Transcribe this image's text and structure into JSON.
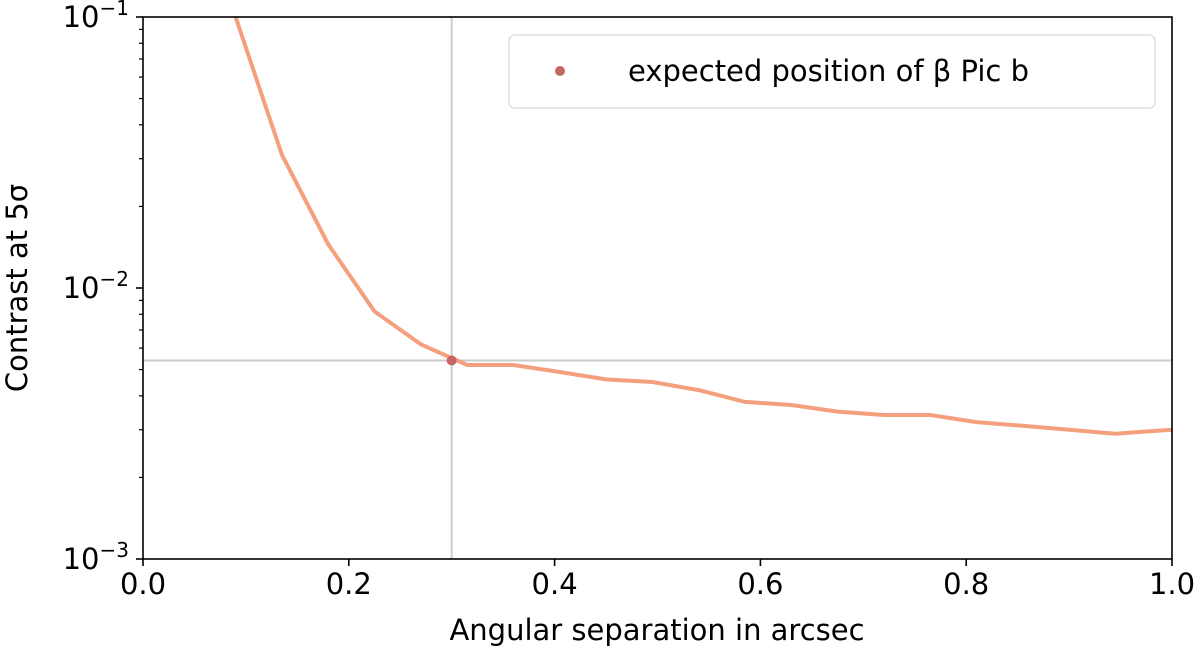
{
  "chart_data": {
    "type": "line",
    "xlabel": "Angular separation in arcsec",
    "ylabel": "Contrast at 5σ",
    "xlim": [
      0.0,
      1.0
    ],
    "ylim": [
      0.001,
      0.1
    ],
    "y_scale": "log",
    "x_ticks": [
      0.0,
      0.2,
      0.4,
      0.6,
      0.8,
      1.0
    ],
    "x_tick_labels": [
      "0.0",
      "0.2",
      "0.4",
      "0.6",
      "0.8",
      "1.0"
    ],
    "y_ticks": [
      0.001,
      0.01,
      0.1
    ],
    "y_tick_labels": [
      {
        "base": "10",
        "exp": "−3"
      },
      {
        "base": "10",
        "exp": "−2"
      },
      {
        "base": "10",
        "exp": "−1"
      }
    ],
    "grid": false,
    "series": [
      {
        "color": "#f4a07e",
        "x": [
          0.09,
          0.135,
          0.18,
          0.225,
          0.27,
          0.315,
          0.36,
          0.405,
          0.45,
          0.495,
          0.54,
          0.585,
          0.63,
          0.675,
          0.72,
          0.765,
          0.81,
          0.855,
          0.9,
          0.945,
          1.0
        ],
        "y": [
          0.1,
          0.031,
          0.0145,
          0.0082,
          0.0062,
          0.0052,
          0.0052,
          0.0049,
          0.0046,
          0.0045,
          0.0042,
          0.0038,
          0.0037,
          0.0035,
          0.0034,
          0.0034,
          0.0032,
          0.0031,
          0.003,
          0.0029,
          0.003
        ]
      }
    ],
    "marker": {
      "label": "expected position of β Pic b",
      "x": 0.3,
      "y": 0.0054,
      "color": "#c86464"
    },
    "reference_lines": {
      "vertical_x": 0.3,
      "horizontal_y": 0.0054,
      "color": "#cccccc"
    },
    "legend": {
      "placement": "top-right",
      "entries": [
        "expected position of β Pic b"
      ]
    }
  }
}
